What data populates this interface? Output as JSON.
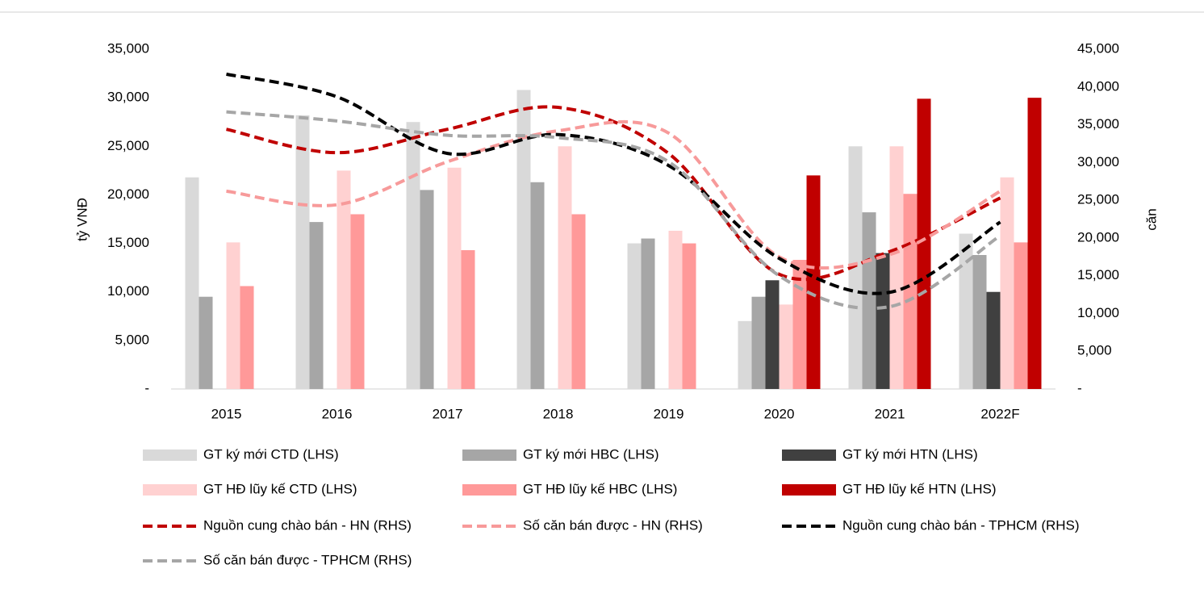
{
  "chart_data": {
    "type": "combo",
    "y_label": "tỷ VNĐ",
    "y2_label": "căn",
    "categories": [
      "2015",
      "2016",
      "2017",
      "2018",
      "2019",
      "2020",
      "2021",
      "2022F"
    ],
    "ylim": [
      0,
      35000
    ],
    "yticks": [
      {
        "value": 0,
        "label": "-"
      },
      {
        "value": 5000,
        "label": "5,000"
      },
      {
        "value": 10000,
        "label": "10,000"
      },
      {
        "value": 15000,
        "label": "15,000"
      },
      {
        "value": 20000,
        "label": "20,000"
      },
      {
        "value": 25000,
        "label": "25,000"
      },
      {
        "value": 30000,
        "label": "30,000"
      },
      {
        "value": 35000,
        "label": "35,000"
      }
    ],
    "y2lim": [
      0,
      45000
    ],
    "y2ticks": [
      {
        "value": 0,
        "label": "-"
      },
      {
        "value": 5000,
        "label": "5,000"
      },
      {
        "value": 10000,
        "label": "10,000"
      },
      {
        "value": 15000,
        "label": "15,000"
      },
      {
        "value": 20000,
        "label": "20,000"
      },
      {
        "value": 25000,
        "label": "25,000"
      },
      {
        "value": 30000,
        "label": "30,000"
      },
      {
        "value": 35000,
        "label": "35,000"
      },
      {
        "value": 40000,
        "label": "40,000"
      },
      {
        "value": 45000,
        "label": "45,000"
      }
    ],
    "series": [
      {
        "name": "GT ký mới CTD (LHS)",
        "type": "bar",
        "color": "#d9d9d9",
        "values": [
          21800,
          28200,
          27500,
          30800,
          15000,
          7000,
          25000,
          16000
        ]
      },
      {
        "name": "GT ký mới HBC (LHS)",
        "type": "bar",
        "color": "#a6a6a6",
        "values": [
          9500,
          17200,
          20500,
          21300,
          15500,
          9500,
          18200,
          13800
        ]
      },
      {
        "name": "GT ký mới HTN (LHS)",
        "type": "bar",
        "color": "#404040",
        "values": [
          null,
          null,
          null,
          null,
          null,
          11200,
          14000,
          10000
        ]
      },
      {
        "name": "GT HĐ lũy kế CTD (LHS)",
        "type": "bar",
        "color": "#ffd1d1",
        "values": [
          15100,
          22500,
          22800,
          25000,
          16300,
          8700,
          25000,
          21800
        ]
      },
      {
        "name": "GT HĐ lũy kế HBC (LHS)",
        "type": "bar",
        "color": "#ff9999",
        "values": [
          10600,
          18000,
          14300,
          18000,
          15000,
          13300,
          20100,
          15100
        ]
      },
      {
        "name": "GT HĐ lũy kế HTN (LHS)",
        "type": "bar",
        "color": "#c00000",
        "values": [
          null,
          null,
          null,
          null,
          null,
          22000,
          29900,
          30000
        ]
      },
      {
        "name": "Nguồn cung chào bán - HN (RHS)",
        "type": "line",
        "axis": "y2",
        "color": "#c00000",
        "values": [
          34400,
          31300,
          34400,
          37300,
          31200,
          15200,
          18200,
          25300
        ]
      },
      {
        "name": "Số căn bán được - HN (RHS)",
        "type": "line",
        "axis": "y2",
        "color": "#f79a9a",
        "values": [
          26200,
          24400,
          30100,
          34200,
          33900,
          17500,
          17800,
          26200
        ]
      },
      {
        "name": "Nguồn cung chào bán - TPHCM (RHS)",
        "type": "line",
        "axis": "y2",
        "color": "#000000",
        "values": [
          41700,
          38700,
          31200,
          33700,
          29600,
          17300,
          12800,
          22100
        ]
      },
      {
        "name": "Số căn bán được - TPHCM (RHS)",
        "type": "line",
        "axis": "y2",
        "color": "#a6a6a6",
        "values": [
          36700,
          35500,
          33600,
          33300,
          30100,
          15000,
          10900,
          20300
        ]
      }
    ]
  }
}
